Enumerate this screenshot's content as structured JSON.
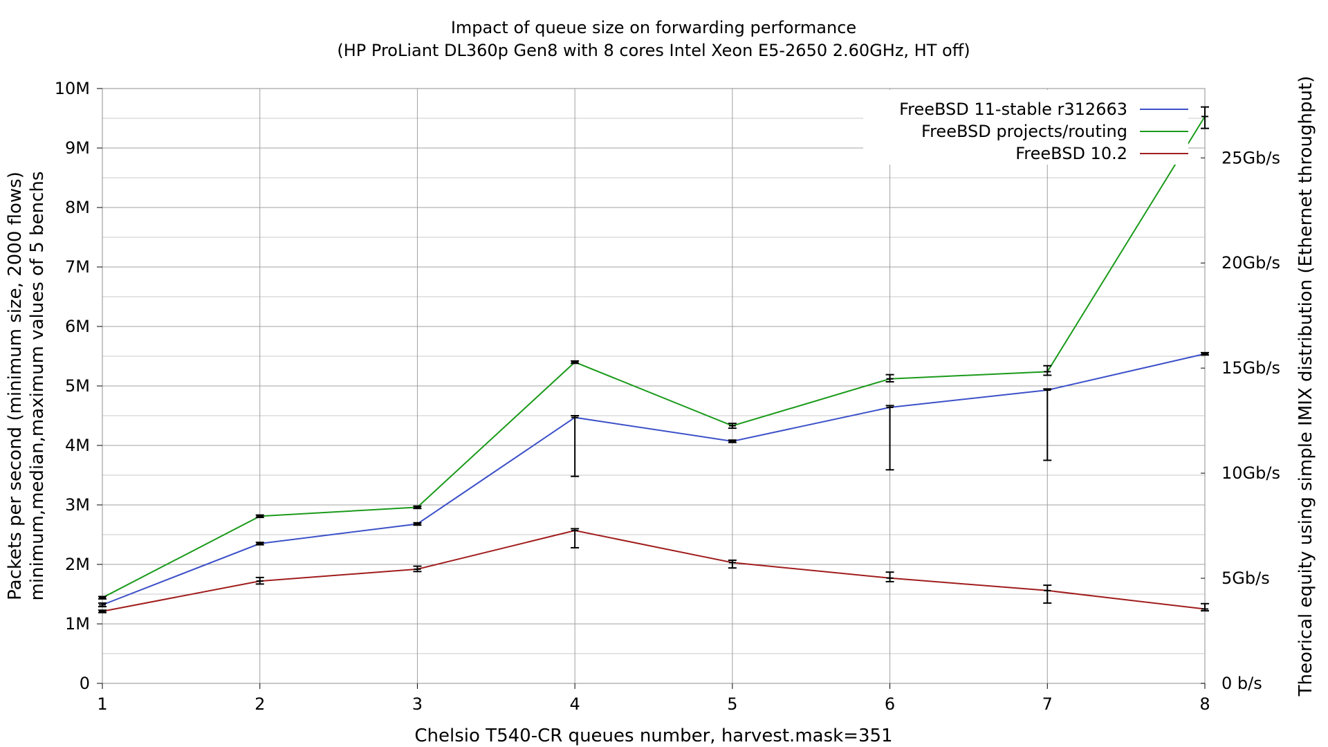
{
  "chart_data": {
    "type": "line",
    "title": "Impact of queue size on forwarding performance",
    "subtitle": "(HP ProLiant DL360p Gen8 with 8 cores Intel Xeon E5-2650 2.60GHz, HT off)",
    "xlabel": "Chelsio T540-CR queues number, harvest.mask=351",
    "ylabel": "Packets per second (minimum size, 2000 flows)",
    "ylabel2": "minimum,median,maximum values of 5 benchs",
    "y2label": "Theorical equity using simple IMIX distribution (Ethernet throughput)",
    "x": [
      1,
      2,
      3,
      4,
      5,
      6,
      7,
      8
    ],
    "x_ticks": [
      "1",
      "2",
      "3",
      "4",
      "5",
      "6",
      "7",
      "8"
    ],
    "xlim": [
      1,
      8
    ],
    "ylim": [
      0,
      10000000
    ],
    "y_ticks": [
      {
        "value": 0,
        "label": "0"
      },
      {
        "value": 1000000,
        "label": "1M"
      },
      {
        "value": 2000000,
        "label": "2M"
      },
      {
        "value": 3000000,
        "label": "3M"
      },
      {
        "value": 4000000,
        "label": "4M"
      },
      {
        "value": 5000000,
        "label": "5M"
      },
      {
        "value": 6000000,
        "label": "6M"
      },
      {
        "value": 7000000,
        "label": "7M"
      },
      {
        "value": 8000000,
        "label": "8M"
      },
      {
        "value": 9000000,
        "label": "9M"
      },
      {
        "value": 10000000,
        "label": "10M"
      }
    ],
    "y2lim_gbps": [
      0,
      28.3
    ],
    "y2_ticks": [
      {
        "value": 0,
        "label": "0 b/s"
      },
      {
        "value": 5,
        "label": "5Gb/s"
      },
      {
        "value": 10,
        "label": "10Gb/s"
      },
      {
        "value": 15,
        "label": "15Gb/s"
      },
      {
        "value": 20,
        "label": "20Gb/s"
      },
      {
        "value": 25,
        "label": "25Gb/s"
      }
    ],
    "grid": true,
    "legend_position": "top-right",
    "series": [
      {
        "name": "FreeBSD 11-stable r312663",
        "color": "#3c50c8",
        "values": [
          1320000,
          2350000,
          2680000,
          4470000,
          4070000,
          4640000,
          4930000,
          5540000
        ],
        "min": [
          1290000,
          2330000,
          2660000,
          3480000,
          4050000,
          3590000,
          3750000,
          5520000
        ],
        "max": [
          1350000,
          2370000,
          2700000,
          4500000,
          4090000,
          4670000,
          4950000,
          5560000
        ]
      },
      {
        "name": "FreeBSD projects/routing",
        "color": "#1a9a1a",
        "values": [
          1440000,
          2810000,
          2960000,
          5400000,
          4330000,
          5120000,
          5240000,
          9530000
        ],
        "min": [
          1420000,
          2790000,
          2940000,
          5380000,
          4290000,
          5070000,
          5180000,
          9330000
        ],
        "max": [
          1460000,
          2830000,
          2980000,
          5420000,
          4370000,
          5190000,
          5340000,
          9690000
        ]
      },
      {
        "name": "FreeBSD 10.2",
        "color": "#a01c1c",
        "values": [
          1210000,
          1720000,
          1920000,
          2570000,
          2030000,
          1770000,
          1560000,
          1250000
        ],
        "min": [
          1190000,
          1670000,
          1880000,
          2280000,
          1940000,
          1710000,
          1350000,
          1220000
        ],
        "max": [
          1230000,
          1780000,
          1970000,
          2600000,
          2070000,
          1870000,
          1650000,
          1340000
        ]
      }
    ]
  }
}
